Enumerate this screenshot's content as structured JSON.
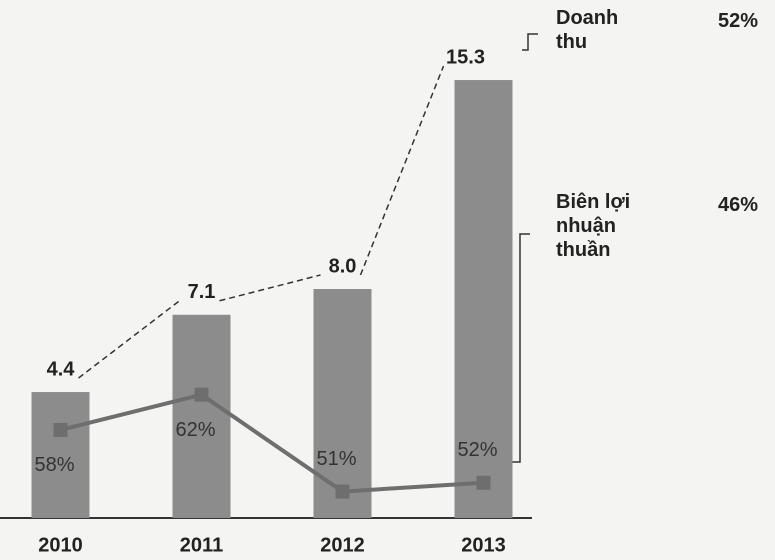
{
  "chart_data": {
    "type": "bar",
    "categories": [
      "2010",
      "2011",
      "2012",
      "2013"
    ],
    "ylim": [
      0,
      16
    ],
    "y2lim": [
      48,
      100
    ],
    "series": [
      {
        "name": "Doanh thu",
        "color": "#8c8c8c",
        "values": [
          4.4,
          7.1,
          8.0,
          15.3
        ],
        "value_labels": [
          "4.4",
          "7.1",
          "8.0",
          "15.3"
        ],
        "note": "52%"
      },
      {
        "name": "Biên lợi nhuận thuần",
        "color": "#6e6e6e",
        "axis": "y2",
        "values": [
          58,
          62,
          51,
          52
        ],
        "value_labels": [
          "58%",
          "62%",
          "51%",
          "52%"
        ],
        "note": "46%"
      }
    ]
  }
}
